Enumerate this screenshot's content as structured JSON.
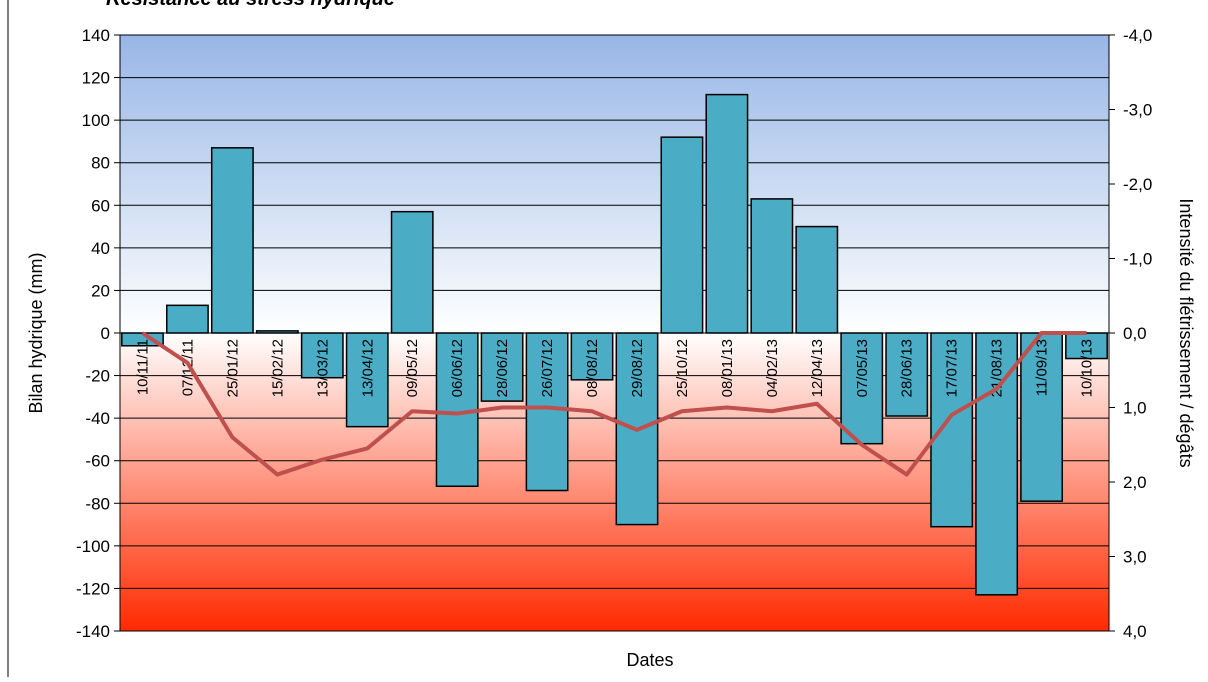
{
  "chart_data": {
    "type": "bar",
    "title": "Résistance au stress hydrique",
    "xlabel": "Dates",
    "ylabel": "Bilan hydrique (mm)",
    "y2label": "Intensité du flétrissement / dégâts",
    "ylim": [
      -140,
      140
    ],
    "y_ticks": [
      140,
      120,
      100,
      80,
      60,
      40,
      20,
      0,
      -20,
      -40,
      -60,
      -80,
      -100,
      -120,
      -140
    ],
    "y2lim": [
      4.0,
      -4.0
    ],
    "y2_ticks": [
      "-4,0",
      "-3,0",
      "-2,0",
      "-1,0",
      "0,0",
      "1,0",
      "2,0",
      "3,0",
      "4,0"
    ],
    "y2_reversed": true,
    "grid": true,
    "background_gradient": true,
    "categories": [
      "10/11/11",
      "07/12/11",
      "25/01/12",
      "15/02/12",
      "13/03/12",
      "13/04/12",
      "09/05/12",
      "06/06/12",
      "28/06/12",
      "26/07/12",
      "08/08/12",
      "29/08/12",
      "25/10/12",
      "08/01/13",
      "04/02/13",
      "12/04/13",
      "07/05/13",
      "28/06/13",
      "17/07/13",
      "21/08/13",
      "11/09/13",
      "10/10/13"
    ],
    "series": [
      {
        "type": "bar",
        "axis": "left",
        "color": "#4bacc6",
        "values": [
          -6,
          13,
          87,
          1,
          -21,
          -44,
          57,
          -72,
          -32,
          -74,
          -22,
          -90,
          92,
          112,
          63,
          50,
          -52,
          -39,
          -91,
          -123,
          -79,
          -12
        ]
      },
      {
        "type": "line",
        "axis": "right",
        "color": "#c0504d",
        "values": [
          0.0,
          0.4,
          1.4,
          1.9,
          1.7,
          1.55,
          1.05,
          1.08,
          1.0,
          1.0,
          1.05,
          1.3,
          1.05,
          1.0,
          1.05,
          0.95,
          1.5,
          1.9,
          1.1,
          0.75,
          0.0,
          0.0
        ]
      }
    ],
    "colors": {
      "bar_fill": "#4bacc6",
      "bar_stroke": "#000000",
      "line": "#c0504d",
      "top_gradient": "#97b6e6",
      "bottom_gradient": "#ff2a00"
    }
  }
}
